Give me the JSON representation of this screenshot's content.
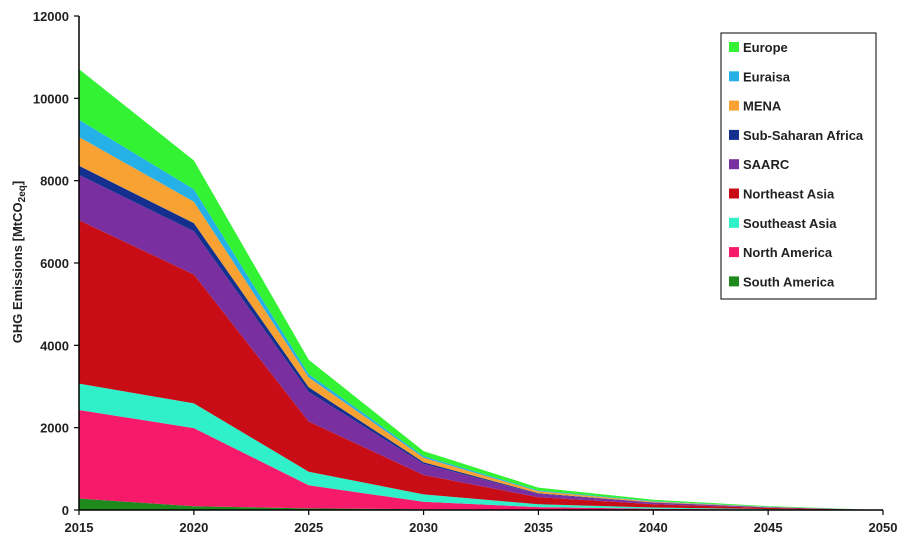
{
  "chart_data": {
    "type": "area",
    "stacked": true,
    "ylabel": "GHG Emissions [MtCO2eq]",
    "ylabel_main": "GHG Emissions [MtCO",
    "ylabel_sub": "2eq",
    "ylabel_close": "]",
    "xlabel": "",
    "x": [
      2015,
      2020,
      2025,
      2030,
      2035,
      2040,
      2045,
      2050
    ],
    "xticks": [
      "2015",
      "2020",
      "2025",
      "2030",
      "2035",
      "2040",
      "2045",
      "2050"
    ],
    "ylim": [
      0,
      12000
    ],
    "yticks": [
      "0",
      "2000",
      "4000",
      "6000",
      "8000",
      "10000",
      "12000"
    ],
    "grid": false,
    "legend_position": "top-right",
    "series": [
      {
        "name": "South America",
        "color": "#1e8a1e",
        "values": [
          280,
          90,
          40,
          20,
          10,
          5,
          2,
          0
        ]
      },
      {
        "name": "North America",
        "color": "#f7196a",
        "values": [
          2150,
          1900,
          560,
          180,
          60,
          25,
          10,
          0
        ]
      },
      {
        "name": "Southeast Asia",
        "color": "#2ff0c8",
        "values": [
          640,
          600,
          330,
          180,
          70,
          30,
          10,
          0
        ]
      },
      {
        "name": "Northeast Asia",
        "color": "#c80d16",
        "values": [
          3970,
          3130,
          1220,
          470,
          170,
          80,
          30,
          0
        ]
      },
      {
        "name": "SAARC",
        "color": "#7a2fa0",
        "values": [
          1100,
          1050,
          720,
          270,
          80,
          40,
          15,
          0
        ]
      },
      {
        "name": "Sub-Saharan Africa",
        "color": "#13308f",
        "values": [
          220,
          200,
          110,
          40,
          15,
          5,
          2,
          0
        ]
      },
      {
        "name": "MENA",
        "color": "#f7a233",
        "values": [
          700,
          520,
          240,
          110,
          50,
          20,
          5,
          0
        ]
      },
      {
        "name": "Euraisa",
        "color": "#25b0e8",
        "values": [
          420,
          300,
          80,
          40,
          20,
          10,
          5,
          0
        ]
      },
      {
        "name": "Europe",
        "color": "#33f233",
        "values": [
          1230,
          700,
          350,
          120,
          70,
          35,
          15,
          0
        ]
      }
    ],
    "legend_order": [
      "Europe",
      "Euraisa",
      "MENA",
      "Sub-Saharan Africa",
      "SAARC",
      "Northeast Asia",
      "Southeast Asia",
      "North America",
      "South America"
    ]
  }
}
